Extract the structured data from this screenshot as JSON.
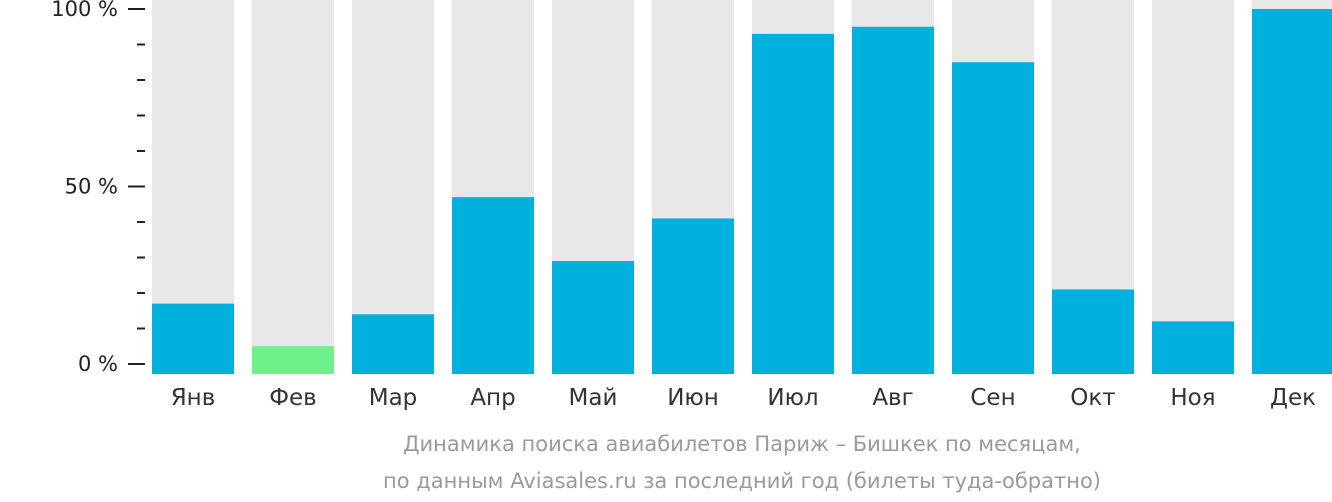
{
  "chart_data": {
    "type": "bar",
    "categories": [
      "Янв",
      "Фев",
      "Мар",
      "Апр",
      "Май",
      "Июн",
      "Июл",
      "Авг",
      "Сен",
      "Окт",
      "Ноя",
      "Дек"
    ],
    "values": [
      17,
      5,
      14,
      47,
      29,
      41,
      93,
      95,
      85,
      21,
      12,
      100
    ],
    "highlight_index": 1,
    "ylim": [
      0,
      100
    ],
    "yticks": [
      {
        "value": 0,
        "label": "0 %"
      },
      {
        "value": 50,
        "label": "50 %"
      },
      {
        "value": 100,
        "label": "100 %"
      }
    ],
    "minor_tick_step": 10,
    "grid": false,
    "title": "",
    "xlabel": "",
    "ylabel": ""
  },
  "caption": {
    "line1": "Динамика поиска авиабилетов Париж – Бишкек по месяцам,",
    "line2": "по данным Aviasales.ru за последний год (билеты туда-обратно)"
  },
  "colors": {
    "bar": "#00b0dd",
    "highlight": "#6ef08a",
    "track": "#e8e8e8",
    "axis": "#222222"
  }
}
